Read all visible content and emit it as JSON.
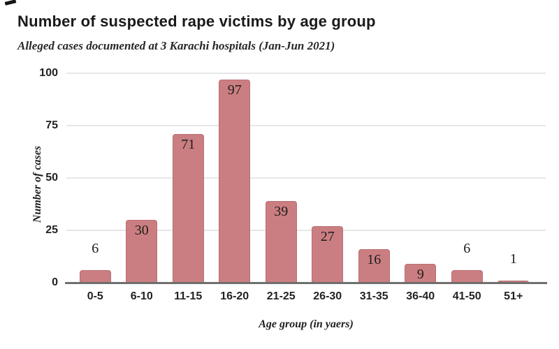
{
  "chart_data": {
    "type": "bar",
    "title": "Number of suspected rape victims by age group",
    "subtitle": "Alleged cases documented at 3 Karachi hospitals (Jan-Jun 2021)",
    "categories": [
      "0-5",
      "6-10",
      "11-15",
      "16-20",
      "21-25",
      "26-30",
      "31-35",
      "36-40",
      "41-50",
      "51+"
    ],
    "values": [
      6,
      30,
      71,
      97,
      39,
      27,
      16,
      9,
      6,
      1
    ],
    "label_placement": [
      "above",
      "inside",
      "inside",
      "inside",
      "inside",
      "inside",
      "inside",
      "inside",
      "above",
      "above"
    ],
    "xlabel": "Age group (in yaers)",
    "ylabel": "Number of cases",
    "ylim": [
      0,
      100
    ],
    "yticks": [
      0,
      25,
      50,
      75,
      100
    ],
    "grid": true,
    "legend": "none",
    "bar_color": "#cb7e81",
    "bar_border_color": "#b96e71",
    "gridline_color": "#e7e7e7",
    "axis_line_color": "#6f6f6f"
  }
}
